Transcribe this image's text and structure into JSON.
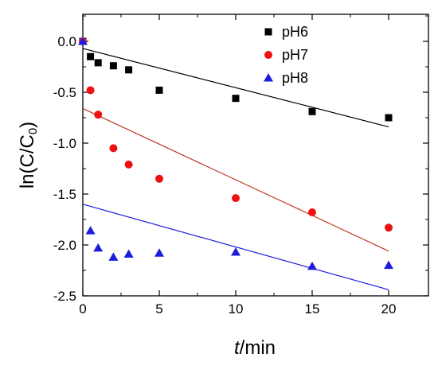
{
  "chart_data": {
    "type": "scatter",
    "xlabel_italic": "t",
    "xlabel_rest": "/min",
    "ylabel_main": "ln(C/C",
    "ylabel_sub": "0",
    "ylabel_close": ")",
    "xlim": [
      0,
      22.5
    ],
    "ylim": [
      -2.5,
      0.3
    ],
    "xticks": [
      0,
      5,
      10,
      15,
      20
    ],
    "yticks": [
      0.0,
      -0.5,
      -1.0,
      -1.5,
      -2.0,
      -2.5
    ],
    "xtick_labels": [
      "0",
      "5",
      "10",
      "15",
      "20"
    ],
    "ytick_labels": [
      "0.0",
      "-0.5",
      "-1.0",
      "-1.5",
      "-2.0",
      "-2.5"
    ],
    "legend_position": "top-right",
    "series": [
      {
        "name": "pH6",
        "marker": "square",
        "color": "#000000",
        "x": [
          0,
          0.5,
          1,
          2,
          3,
          5,
          10,
          15,
          20
        ],
        "y": [
          0.0,
          -0.15,
          -0.21,
          -0.24,
          -0.28,
          -0.48,
          -0.56,
          -0.69,
          -0.75
        ],
        "fit": {
          "x": [
            0,
            20
          ],
          "y": [
            -0.07,
            -0.84
          ]
        }
      },
      {
        "name": "pH7",
        "marker": "circle",
        "color": "#ee1111",
        "x": [
          0,
          0.5,
          1,
          2,
          3,
          5,
          10,
          15,
          20
        ],
        "y": [
          0.0,
          -0.48,
          -0.72,
          -1.05,
          -1.21,
          -1.35,
          -1.54,
          -1.68,
          -1.83
        ],
        "fit": {
          "x": [
            0,
            20
          ],
          "y": [
            -0.66,
            -2.06
          ]
        }
      },
      {
        "name": "pH8",
        "marker": "triangle",
        "color": "#1c1ce0",
        "x": [
          0,
          0.5,
          1,
          2,
          3,
          5,
          10,
          15,
          20
        ],
        "y": [
          0.0,
          -1.86,
          -2.03,
          -2.12,
          -2.09,
          -2.08,
          -2.07,
          -2.21,
          -2.2
        ],
        "fit": {
          "x": [
            0,
            20
          ],
          "y": [
            -1.6,
            -2.44
          ]
        }
      }
    ]
  }
}
